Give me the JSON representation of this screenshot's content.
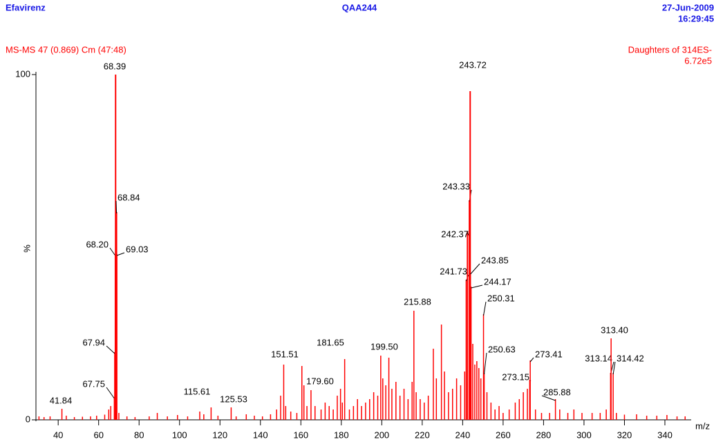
{
  "chart_data": {
    "type": "spectrum",
    "title": "QAA244",
    "sample": "Efavirenz",
    "date": "27-Jun-2009",
    "time": "16:29:45",
    "scan_info": "MS-MS 47 (0.869) Cm (47:48)",
    "function_info": "Daughters of 314ES-",
    "intensity": "6.72e5",
    "ylabel": "%",
    "xlabel": "m/z",
    "color": "#ff0000",
    "xlim": [
      29,
      353
    ],
    "ylim": [
      0,
      100
    ],
    "xticks": [
      40,
      60,
      80,
      100,
      120,
      140,
      160,
      180,
      200,
      220,
      240,
      260,
      280,
      300,
      320,
      340
    ],
    "yticks": [
      0,
      100
    ],
    "x": [
      41.84,
      67.75,
      67.94,
      68.2,
      68.39,
      68.84,
      69.03,
      115.61,
      125.53,
      151.51,
      179.6,
      181.65,
      199.5,
      215.88,
      241.73,
      242.37,
      243.33,
      243.72,
      243.85,
      244.17,
      250.31,
      250.63,
      273.15,
      273.41,
      285.88,
      313.14,
      313.4,
      314.42,
      30.5,
      33,
      36,
      44,
      48,
      52,
      56,
      59,
      63,
      65,
      66,
      70,
      74,
      78,
      85,
      89,
      94,
      99,
      104,
      110,
      112,
      119,
      128,
      133,
      137,
      141,
      145,
      148,
      150,
      152.5,
      155,
      158,
      160.5,
      161.5,
      163,
      165,
      167,
      170,
      172,
      174,
      176,
      178,
      180.5,
      184,
      186,
      188,
      190,
      192,
      194,
      196,
      198,
      200.5,
      202,
      203.5,
      205,
      207,
      209,
      211,
      213,
      215,
      217,
      219,
      221,
      223,
      225.5,
      227,
      229.5,
      231,
      233,
      235,
      237,
      239,
      241,
      245,
      246,
      247,
      248,
      249,
      252,
      254,
      256,
      258,
      260,
      263,
      266,
      268,
      270,
      272,
      276,
      279,
      283,
      288,
      292,
      295,
      299,
      304,
      308,
      311,
      316,
      320,
      326,
      331,
      336,
      341,
      346,
      350
    ],
    "values": [
      3.2,
      6.6,
      19.6,
      48,
      100,
      60.2,
      48,
      3.6,
      3.6,
      16,
      9,
      17.6,
      18.6,
      31.6,
      40.6,
      54.6,
      63.6,
      95.2,
      42.6,
      38.6,
      30.6,
      13.6,
      11.6,
      17.2,
      6,
      13.6,
      23.6,
      13.6,
      1,
      0.8,
      1,
      1.2,
      0.8,
      0.9,
      1,
      1.2,
      1.5,
      3,
      4,
      2,
      1,
      0.8,
      1,
      2,
      1,
      1.4,
      1,
      2.4,
      1.6,
      1.2,
      1,
      1.6,
      1.2,
      1,
      1.6,
      3,
      7,
      4,
      2.4,
      2,
      15.6,
      10,
      4,
      8.6,
      4,
      3,
      5,
      4,
      3,
      7,
      5,
      3,
      4,
      6,
      4,
      5,
      6,
      8,
      7,
      12,
      10,
      18,
      9,
      11,
      7,
      9,
      6,
      11,
      8,
      6,
      5,
      7,
      20.6,
      12,
      27.6,
      14,
      8,
      9,
      12,
      10,
      14,
      22,
      16,
      17,
      15,
      12,
      8,
      5,
      3,
      4,
      2,
      3,
      5,
      6,
      8,
      9,
      3,
      2,
      2,
      3,
      2,
      3,
      2,
      2,
      2,
      3,
      2,
      1.5,
      1.6,
      1.2,
      1.2,
      1.4,
      1,
      1
    ],
    "peak_labels": [
      "41.84",
      "67.75",
      "67.94",
      "68.20",
      "68.39",
      "68.84",
      "69.03",
      "115.61",
      "125.53",
      "151.51",
      "179.60",
      "181.65",
      "199.50",
      "215.88",
      "241.73",
      "242.37",
      "243.33",
      "243.72",
      "243.85",
      "244.17",
      "250.31",
      "250.63",
      "273.15",
      "273.41",
      "285.88",
      "313.14",
      "313.40",
      "314.42",
      null,
      null,
      null,
      null,
      null,
      null,
      null,
      null,
      null,
      null,
      null,
      null,
      null,
      null,
      null,
      null,
      null,
      null,
      null,
      null,
      null,
      null,
      null,
      null,
      null,
      null,
      null,
      null,
      null,
      null,
      null,
      null,
      null,
      null,
      null,
      null,
      null,
      null,
      null,
      null,
      null,
      null,
      null,
      null,
      null,
      null,
      null,
      null,
      null,
      null,
      null,
      null,
      null,
      null,
      null,
      null,
      null,
      null,
      null,
      null,
      null,
      null,
      null,
      null,
      null,
      null,
      null,
      null,
      null,
      null,
      null,
      null,
      null,
      null,
      null,
      null,
      null,
      null,
      null,
      null,
      null,
      null,
      null,
      null,
      null,
      null,
      null,
      null,
      null,
      null,
      null,
      null,
      null,
      null,
      null,
      null,
      null,
      null,
      null,
      null
    ]
  }
}
